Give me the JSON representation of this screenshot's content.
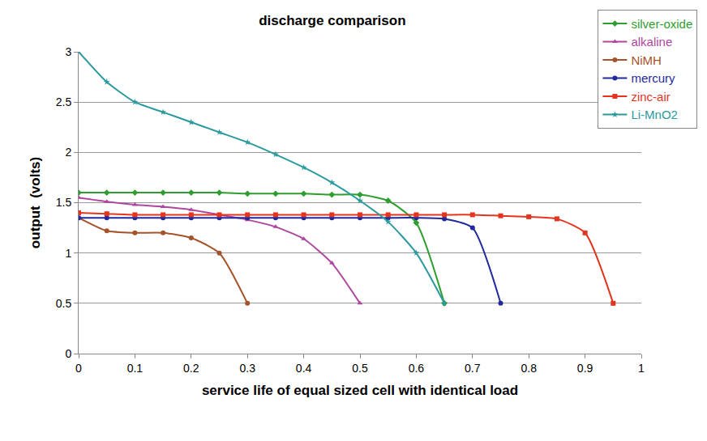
{
  "chart_data": {
    "type": "line",
    "title": "discharge comparison",
    "x_label": "service life of equal sized cell with identical load",
    "y_label": "output  (volts)",
    "xlim": [
      0,
      1
    ],
    "xticks": [
      0,
      0.1,
      0.2,
      0.3,
      0.4,
      0.5,
      0.6,
      0.7,
      0.8,
      0.9,
      1
    ],
    "ylim": [
      0,
      3
    ],
    "yticks": [
      0,
      0.5,
      1,
      1.5,
      2,
      2.5,
      3
    ],
    "grid": true,
    "legend": "top right",
    "series": [
      {
        "name": "silver-oxide",
        "color": "#2e9e2e",
        "marker": "diamond",
        "x": [
          0,
          0.05,
          0.1,
          0.15,
          0.2,
          0.25,
          0.3,
          0.35,
          0.4,
          0.45,
          0.5,
          0.55,
          0.6,
          0.65
        ],
        "values": [
          1.6,
          1.6,
          1.6,
          1.6,
          1.6,
          1.6,
          1.59,
          1.59,
          1.59,
          1.58,
          1.58,
          1.52,
          1.3,
          0.5
        ]
      },
      {
        "name": "alkaline",
        "color": "#b0479f",
        "marker": "triangle-up",
        "x": [
          0,
          0.05,
          0.1,
          0.15,
          0.2,
          0.25,
          0.3,
          0.35,
          0.4,
          0.45,
          0.5
        ],
        "values": [
          1.55,
          1.51,
          1.48,
          1.46,
          1.43,
          1.38,
          1.33,
          1.26,
          1.14,
          0.9,
          0.5
        ]
      },
      {
        "name": "NiMH",
        "color": "#a5532a",
        "marker": "circle",
        "x": [
          0,
          0.05,
          0.1,
          0.15,
          0.2,
          0.25,
          0.3
        ],
        "values": [
          1.35,
          1.22,
          1.2,
          1.2,
          1.15,
          1.0,
          0.5
        ]
      },
      {
        "name": "mercury",
        "color": "#1f2a9e",
        "marker": "circle",
        "x": [
          0,
          0.05,
          0.1,
          0.15,
          0.2,
          0.25,
          0.3,
          0.35,
          0.4,
          0.45,
          0.5,
          0.55,
          0.6,
          0.65,
          0.7,
          0.75
        ],
        "values": [
          1.35,
          1.35,
          1.35,
          1.35,
          1.35,
          1.35,
          1.35,
          1.35,
          1.35,
          1.35,
          1.35,
          1.35,
          1.35,
          1.34,
          1.25,
          0.5
        ]
      },
      {
        "name": "zinc-air",
        "color": "#e3341f",
        "marker": "square",
        "x": [
          0,
          0.05,
          0.1,
          0.15,
          0.2,
          0.25,
          0.3,
          0.35,
          0.4,
          0.45,
          0.5,
          0.55,
          0.6,
          0.65,
          0.7,
          0.75,
          0.8,
          0.85,
          0.9,
          0.95
        ],
        "values": [
          1.4,
          1.39,
          1.38,
          1.38,
          1.38,
          1.38,
          1.38,
          1.38,
          1.38,
          1.38,
          1.38,
          1.38,
          1.38,
          1.38,
          1.38,
          1.37,
          1.36,
          1.34,
          1.2,
          0.5
        ]
      },
      {
        "name": "Li-MnO2",
        "color": "#2a9a9e",
        "marker": "star",
        "x": [
          0,
          0.05,
          0.1,
          0.15,
          0.2,
          0.25,
          0.3,
          0.35,
          0.4,
          0.45,
          0.5,
          0.55,
          0.6,
          0.65
        ],
        "values": [
          3.0,
          2.7,
          2.5,
          2.4,
          2.3,
          2.2,
          2.1,
          1.98,
          1.85,
          1.7,
          1.52,
          1.31,
          1.0,
          0.5
        ]
      }
    ]
  }
}
